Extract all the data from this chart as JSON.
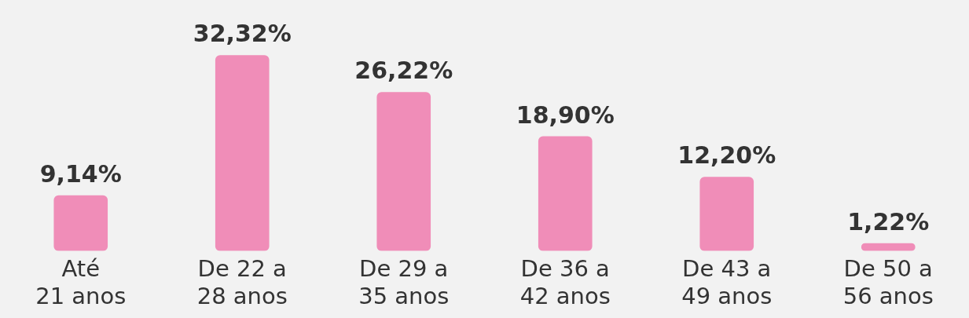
{
  "chart_data": {
    "type": "bar",
    "categories": [
      "Até\n21 anos",
      "De 22 a\n28 anos",
      "De 29 a\n35 anos",
      "De 36 a\n42 anos",
      "De 43 a\n49 anos",
      "De 50 a\n56 anos"
    ],
    "values": [
      9.14,
      32.32,
      26.22,
      18.9,
      12.2,
      1.22
    ],
    "color": "#f08db8",
    "value_labels": [
      "9,14%",
      "32,32%",
      "26,22%",
      "18,90%",
      "12,20%",
      "1,22%"
    ],
    "grid": false,
    "legend": false
  }
}
